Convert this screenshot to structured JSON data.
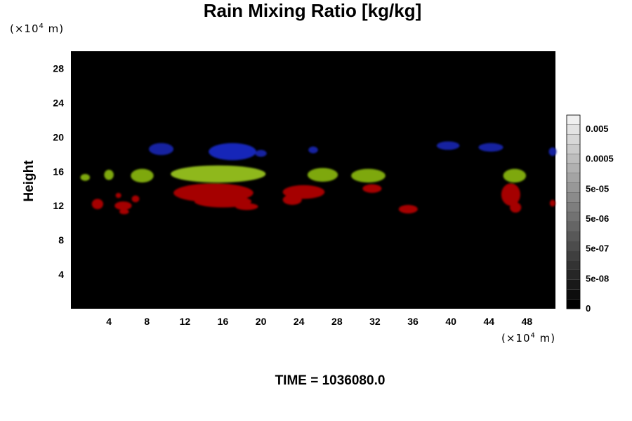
{
  "chart_data": {
    "type": "heatmap",
    "title": "Rain Mixing Ratio [kg/kg]",
    "ylabel": "Height",
    "xlabel": "",
    "x_unit": {
      "prefix": "(×10",
      "exponent": "4",
      "suffix": " m)"
    },
    "y_unit": {
      "prefix": "(×10",
      "exponent": "4",
      "suffix": " m)"
    },
    "xlim": [
      0,
      51
    ],
    "ylim": [
      0,
      30
    ],
    "x_ticks": [
      4,
      8,
      12,
      16,
      20,
      24,
      28,
      32,
      36,
      40,
      44,
      48
    ],
    "y_ticks": [
      4,
      8,
      12,
      16,
      20,
      24,
      28
    ],
    "background_color": "#000000",
    "colorbar": {
      "levels": 20,
      "labels": [
        "0",
        "5e-08",
        "5e-07",
        "5e-06",
        "5e-05",
        "0.0005",
        "0.005"
      ],
      "low_color": "#000000",
      "high_color": "#f0f0f0"
    },
    "features": [
      {
        "band": "red",
        "color": "#a50000",
        "x": 2.8,
        "y": 12.2,
        "rx": 0.6,
        "ry": 0.6
      },
      {
        "band": "red",
        "color": "#a50000",
        "x": 5.5,
        "y": 12.0,
        "rx": 0.9,
        "ry": 0.5
      },
      {
        "band": "red",
        "color": "#a50000",
        "x": 5.6,
        "y": 11.3,
        "rx": 0.5,
        "ry": 0.3
      },
      {
        "band": "red",
        "color": "#a50000",
        "x": 6.8,
        "y": 12.8,
        "rx": 0.4,
        "ry": 0.4
      },
      {
        "band": "red",
        "color": "#a50000",
        "x": 5.0,
        "y": 13.2,
        "rx": 0.3,
        "ry": 0.3
      },
      {
        "band": "red",
        "color": "#a50000",
        "x": 15.0,
        "y": 13.5,
        "rx": 4.2,
        "ry": 1.1
      },
      {
        "band": "red",
        "color": "#a50000",
        "x": 16.0,
        "y": 12.5,
        "rx": 3.0,
        "ry": 0.7
      },
      {
        "band": "red",
        "color": "#a50000",
        "x": 18.5,
        "y": 11.9,
        "rx": 1.2,
        "ry": 0.4
      },
      {
        "band": "red",
        "color": "#a50000",
        "x": 24.5,
        "y": 13.6,
        "rx": 2.2,
        "ry": 0.8
      },
      {
        "band": "red",
        "color": "#a50000",
        "x": 23.3,
        "y": 12.7,
        "rx": 1.0,
        "ry": 0.6
      },
      {
        "band": "red",
        "color": "#a50000",
        "x": 31.7,
        "y": 14.0,
        "rx": 1.0,
        "ry": 0.5
      },
      {
        "band": "red",
        "color": "#a50000",
        "x": 35.5,
        "y": 11.6,
        "rx": 1.0,
        "ry": 0.5
      },
      {
        "band": "red",
        "color": "#a50000",
        "x": 46.3,
        "y": 13.3,
        "rx": 1.0,
        "ry": 1.3
      },
      {
        "band": "red",
        "color": "#a50000",
        "x": 46.8,
        "y": 11.8,
        "rx": 0.6,
        "ry": 0.6
      },
      {
        "band": "red",
        "color": "#a50000",
        "x": 50.7,
        "y": 12.3,
        "rx": 0.3,
        "ry": 0.4
      },
      {
        "band": "green",
        "color": "#7ea810",
        "x": 1.5,
        "y": 15.3,
        "rx": 0.5,
        "ry": 0.4
      },
      {
        "band": "green",
        "color": "#7ea810",
        "x": 4.0,
        "y": 15.6,
        "rx": 0.5,
        "ry": 0.6
      },
      {
        "band": "green",
        "color": "#7ea810",
        "x": 7.5,
        "y": 15.5,
        "rx": 1.2,
        "ry": 0.8
      },
      {
        "band": "green",
        "color": "#8fb81a",
        "x": 15.5,
        "y": 15.7,
        "rx": 5.0,
        "ry": 1.0
      },
      {
        "band": "green",
        "color": "#7ea810",
        "x": 26.5,
        "y": 15.6,
        "rx": 1.6,
        "ry": 0.8
      },
      {
        "band": "green",
        "color": "#7ea810",
        "x": 31.3,
        "y": 15.5,
        "rx": 1.8,
        "ry": 0.8
      },
      {
        "band": "green",
        "color": "#7ea810",
        "x": 46.7,
        "y": 15.5,
        "rx": 1.2,
        "ry": 0.8
      },
      {
        "band": "blue",
        "color": "#1220a0",
        "x": 9.5,
        "y": 18.6,
        "rx": 1.3,
        "ry": 0.7
      },
      {
        "band": "blue",
        "color": "#1528b8",
        "x": 17.0,
        "y": 18.3,
        "rx": 2.5,
        "ry": 1.0
      },
      {
        "band": "blue",
        "color": "#1220a0",
        "x": 20.0,
        "y": 18.1,
        "rx": 0.6,
        "ry": 0.4
      },
      {
        "band": "blue",
        "color": "#1220a0",
        "x": 25.5,
        "y": 18.5,
        "rx": 0.5,
        "ry": 0.4
      },
      {
        "band": "blue",
        "color": "#1220a0",
        "x": 39.7,
        "y": 19.0,
        "rx": 1.2,
        "ry": 0.5
      },
      {
        "band": "blue",
        "color": "#1220a0",
        "x": 44.2,
        "y": 18.8,
        "rx": 1.3,
        "ry": 0.5
      },
      {
        "band": "blue",
        "color": "#1220a0",
        "x": 50.7,
        "y": 18.3,
        "rx": 0.4,
        "ry": 0.5
      }
    ]
  },
  "footer": {
    "time_label": "TIME = 1036080.0"
  }
}
